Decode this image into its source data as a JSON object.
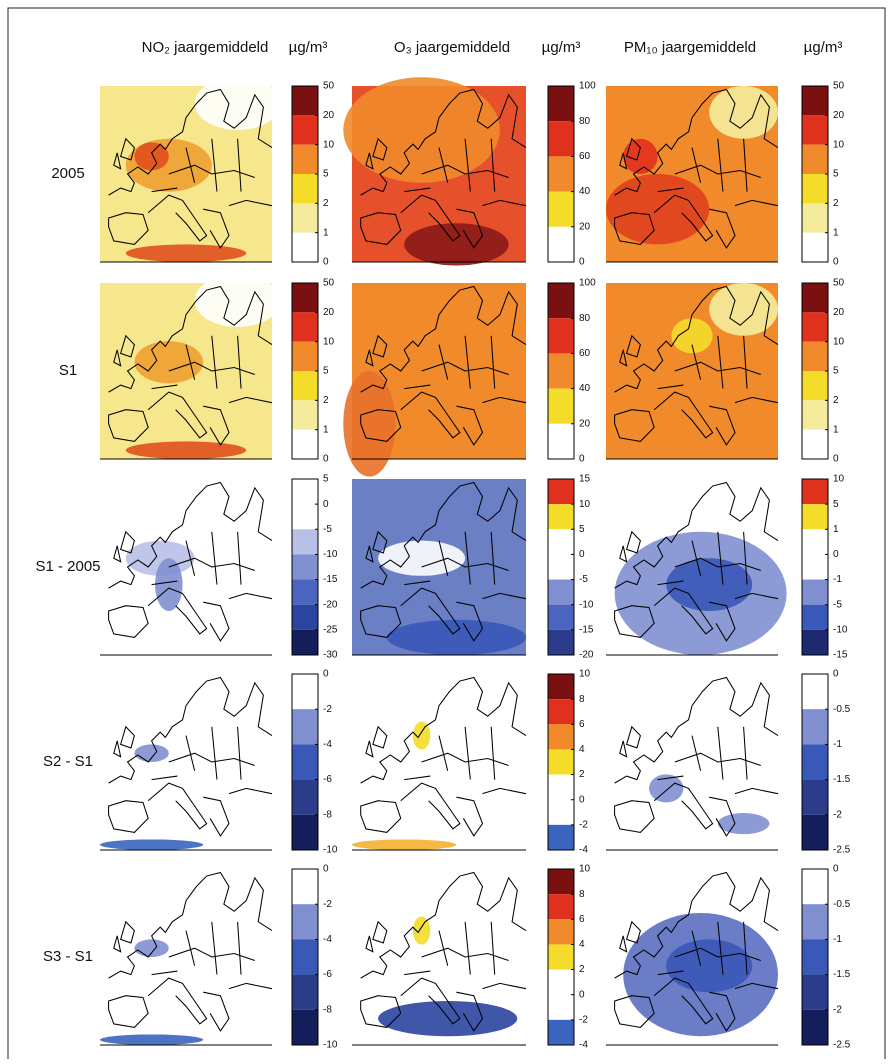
{
  "headers": [
    {
      "title": "NO₂ jaargemiddeld",
      "unit": "µg/m³"
    },
    {
      "title": "O₃ jaargemiddeld",
      "unit": "µg/m³"
    },
    {
      "title": "PM₁₀ jaargemiddeld",
      "unit": "µg/m³"
    }
  ],
  "rows": [
    {
      "label": "2005",
      "colorbars": [
        {
          "ticks": [
            50,
            20,
            10,
            5,
            2,
            1,
            0
          ],
          "colors": [
            "#7a1010",
            "#e0301e",
            "#f08a2a",
            "#f4dc2a",
            "#f4ec9c",
            "#ffffff"
          ]
        },
        {
          "ticks": [
            100,
            80,
            60,
            40,
            20,
            0
          ],
          "colors": [
            "#7a1010",
            "#e0301e",
            "#f08a2a",
            "#f4dc2a",
            "#ffffff"
          ]
        },
        {
          "ticks": [
            50,
            20,
            10,
            5,
            2,
            1,
            0
          ],
          "colors": [
            "#7a1010",
            "#e0301e",
            "#f08a2a",
            "#f4dc2a",
            "#f4ec9c",
            "#ffffff"
          ]
        }
      ]
    },
    {
      "label": "S1",
      "colorbars": [
        {
          "ticks": [
            50,
            20,
            10,
            5,
            2,
            1,
            0
          ],
          "colors": [
            "#7a1010",
            "#e0301e",
            "#f08a2a",
            "#f4dc2a",
            "#f4ec9c",
            "#ffffff"
          ]
        },
        {
          "ticks": [
            100,
            80,
            60,
            40,
            20,
            0
          ],
          "colors": [
            "#7a1010",
            "#e0301e",
            "#f08a2a",
            "#f4dc2a",
            "#ffffff"
          ]
        },
        {
          "ticks": [
            50,
            20,
            10,
            5,
            2,
            1,
            0
          ],
          "colors": [
            "#7a1010",
            "#e0301e",
            "#f08a2a",
            "#f4dc2a",
            "#f4ec9c",
            "#ffffff"
          ]
        }
      ]
    },
    {
      "label": "S1 - 2005",
      "colorbars": [
        {
          "ticks": [
            5,
            0,
            -5,
            -10,
            -15,
            -20,
            -25,
            -30
          ],
          "colors": [
            "#ffffff",
            "#ffffff",
            "#b8c0e8",
            "#7f8fd0",
            "#4a64c0",
            "#2a44a0",
            "#141e5a"
          ]
        },
        {
          "ticks": [
            15,
            10,
            5,
            0,
            -5,
            -10,
            -15,
            -20
          ],
          "colors": [
            "#e0301e",
            "#f4dc2a",
            "#ffffff",
            "#ffffff",
            "#7f8fd0",
            "#4a64c0",
            "#2a3c8a"
          ]
        },
        {
          "ticks": [
            10,
            5,
            1,
            0,
            -1,
            -5,
            -10,
            -15
          ],
          "colors": [
            "#e0301e",
            "#f4dc2a",
            "#ffffff",
            "#ffffff",
            "#7f8fd0",
            "#3a58b8",
            "#1e2a70"
          ]
        }
      ]
    },
    {
      "label": "S2 - S1",
      "colorbars": [
        {
          "ticks": [
            0,
            -2,
            -4,
            -6,
            -8,
            -10
          ],
          "colors": [
            "#ffffff",
            "#7f8fd0",
            "#3a58b8",
            "#2a3c8a",
            "#141e5a"
          ]
        },
        {
          "ticks": [
            10,
            8,
            6,
            4,
            2,
            0,
            -2,
            -4
          ],
          "colors": [
            "#7a1010",
            "#e0301e",
            "#f08a2a",
            "#f4dc2a",
            "#ffffff",
            "#ffffff",
            "#3a64c0"
          ]
        },
        {
          "ticks": [
            0,
            -0.5,
            -1,
            -1.5,
            -2,
            -2.5
          ],
          "colors": [
            "#ffffff",
            "#7f8fd0",
            "#3a58b8",
            "#2a3c8a",
            "#141e5a"
          ]
        }
      ]
    },
    {
      "label": "S3 - S1",
      "colorbars": [
        {
          "ticks": [
            0,
            -2,
            -4,
            -6,
            -8,
            -10
          ],
          "colors": [
            "#ffffff",
            "#7f8fd0",
            "#3a58b8",
            "#2a3c8a",
            "#141e5a"
          ]
        },
        {
          "ticks": [
            10,
            8,
            6,
            4,
            2,
            0,
            -2,
            -4
          ],
          "colors": [
            "#7a1010",
            "#e0301e",
            "#f08a2a",
            "#f4dc2a",
            "#ffffff",
            "#ffffff",
            "#3a64c0"
          ]
        },
        {
          "ticks": [
            0,
            -0.5,
            -1,
            -1.5,
            -2,
            -2.5
          ],
          "colors": [
            "#ffffff",
            "#7f8fd0",
            "#3a58b8",
            "#2a3c8a",
            "#141e5a"
          ]
        }
      ]
    }
  ]
}
